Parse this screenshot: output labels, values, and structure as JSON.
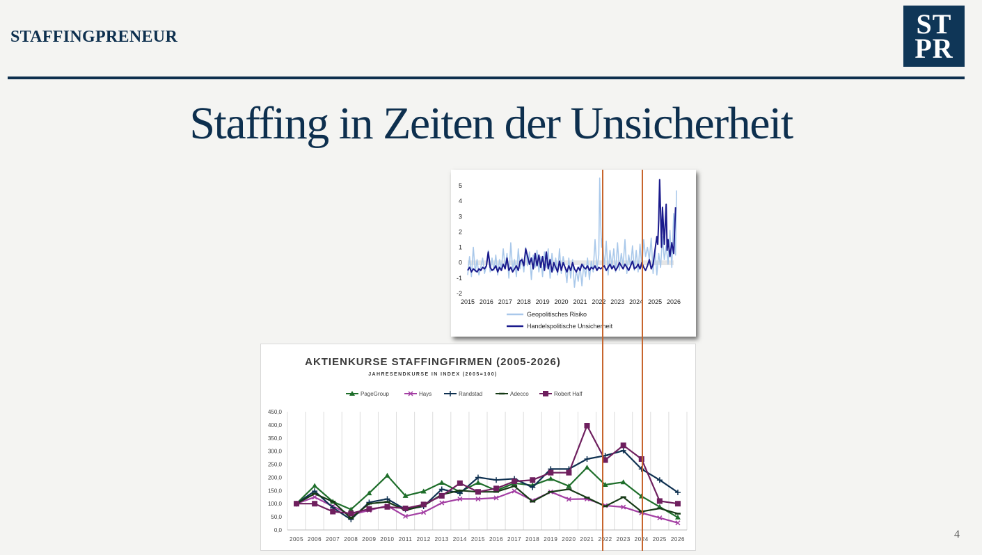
{
  "header": {
    "brand": "STAFFINGPRENEUR",
    "logo_line1": "ST",
    "logo_line2": "PR"
  },
  "title": "Staffing in Zeiten der Unsicherheit",
  "page_number": "4",
  "colors": {
    "navy": "#0d2f4e",
    "marker_line": "#c7652d"
  },
  "chart_data": [
    {
      "type": "line",
      "title": "",
      "x_ticks": [
        "2015",
        "2016",
        "2017",
        "2018",
        "2019",
        "2020",
        "2021",
        "2022",
        "2023",
        "2024",
        "2025",
        "2026"
      ],
      "ylim": [
        -2,
        5.5
      ],
      "y_ticks": [
        "-2",
        "-1",
        "0",
        "1",
        "2",
        "3",
        "4",
        "5"
      ],
      "series": [
        {
          "name": "Geopolitisches Risiko",
          "color": "#a9c8ea",
          "x": [
            2015.0,
            2015.1,
            2015.2,
            2015.3,
            2015.4,
            2015.5,
            2015.6,
            2015.7,
            2015.8,
            2015.9,
            2016.0,
            2016.1,
            2016.2,
            2016.3,
            2016.4,
            2016.5,
            2016.6,
            2016.7,
            2016.8,
            2016.9,
            2017.0,
            2017.1,
            2017.2,
            2017.3,
            2017.4,
            2017.5,
            2017.6,
            2017.7,
            2017.8,
            2017.9,
            2018.0,
            2018.1,
            2018.2,
            2018.3,
            2018.4,
            2018.5,
            2018.6,
            2018.7,
            2018.8,
            2018.9,
            2019.0,
            2019.1,
            2019.2,
            2019.3,
            2019.4,
            2019.5,
            2019.6,
            2019.7,
            2019.8,
            2019.9,
            2020.0,
            2020.1,
            2020.2,
            2020.3,
            2020.4,
            2020.5,
            2020.6,
            2020.7,
            2020.8,
            2020.9,
            2021.0,
            2021.1,
            2021.2,
            2021.3,
            2021.4,
            2021.5,
            2021.6,
            2021.7,
            2021.8,
            2021.9,
            2022.0,
            2022.05,
            2022.1,
            2022.15,
            2022.2,
            2022.3,
            2022.4,
            2022.5,
            2022.6,
            2022.7,
            2022.8,
            2022.9,
            2023.0,
            2023.1,
            2023.2,
            2023.3,
            2023.4,
            2023.5,
            2023.6,
            2023.7,
            2023.8,
            2023.9,
            2024.0,
            2024.1,
            2024.2,
            2024.3,
            2024.4,
            2024.5,
            2024.6,
            2024.7,
            2024.8,
            2024.9,
            2025.0,
            2025.1,
            2025.2,
            2025.3,
            2025.4,
            2025.5,
            2025.6,
            2025.7,
            2025.8,
            2025.9,
            2026.0,
            2026.1,
            2026.15
          ],
          "y": [
            -0.8,
            0.4,
            -0.9,
            1.0,
            -0.6,
            0.2,
            -0.8,
            -0.3,
            0.3,
            -0.7,
            -0.2,
            0.8,
            -0.6,
            0.3,
            -0.5,
            0.5,
            -0.8,
            0.2,
            -0.4,
            0.9,
            -0.3,
            0.6,
            -1.0,
            1.3,
            -0.5,
            0.2,
            -0.9,
            0.9,
            -0.4,
            0.3,
            -0.6,
            1.0,
            -0.2,
            0.7,
            -1.1,
            0.5,
            -0.3,
            0.8,
            -0.6,
            0.4,
            -0.9,
            0.7,
            -0.3,
            0.9,
            -1.0,
            0.6,
            -0.5,
            0.3,
            -0.8,
            0.9,
            -0.7,
            0.4,
            -0.3,
            -1.3,
            0.3,
            -1.0,
            0.2,
            -1.6,
            -0.5,
            -1.2,
            -0.2,
            -1.5,
            -0.1,
            -0.9,
            0.3,
            -1.1,
            0.1,
            -0.6,
            1.5,
            -0.4,
            0.5,
            5.5,
            2.5,
            1.0,
            1.6,
            -0.3,
            1.4,
            -0.8,
            0.8,
            -0.3,
            0.9,
            -0.6,
            1.3,
            -0.5,
            0.6,
            -0.2,
            1.5,
            -0.7,
            0.5,
            -0.3,
            1.1,
            -0.5,
            0.8,
            -0.6,
            1.2,
            -0.3,
            1.5,
            0.4,
            1.0,
            0.2,
            1.6,
            -0.7,
            0.9,
            -0.8,
            0.6,
            -0.3,
            1.7,
            0.2,
            1.1,
            -0.1,
            2.1,
            -0.3,
            3.2,
            0.5,
            4.7
          ]
        },
        {
          "name": "Handelspolitische Unsicherheit",
          "color": "#1a1a8c",
          "x": [
            2015.0,
            2015.1,
            2015.2,
            2015.3,
            2015.4,
            2015.5,
            2015.6,
            2015.7,
            2015.8,
            2015.9,
            2016.0,
            2016.1,
            2016.2,
            2016.3,
            2016.4,
            2016.5,
            2016.6,
            2016.7,
            2016.8,
            2016.9,
            2017.0,
            2017.1,
            2017.2,
            2017.3,
            2017.4,
            2017.5,
            2017.6,
            2017.7,
            2017.8,
            2017.9,
            2018.0,
            2018.1,
            2018.2,
            2018.3,
            2018.4,
            2018.5,
            2018.6,
            2018.7,
            2018.8,
            2018.9,
            2019.0,
            2019.1,
            2019.2,
            2019.3,
            2019.4,
            2019.5,
            2019.6,
            2019.7,
            2019.8,
            2019.9,
            2020.0,
            2020.1,
            2020.2,
            2020.3,
            2020.4,
            2020.5,
            2020.6,
            2020.7,
            2020.8,
            2020.9,
            2021.0,
            2021.1,
            2021.2,
            2021.3,
            2021.4,
            2021.5,
            2021.6,
            2021.7,
            2021.8,
            2021.9,
            2022.0,
            2022.1,
            2022.2,
            2022.3,
            2022.4,
            2022.5,
            2022.6,
            2022.7,
            2022.8,
            2022.9,
            2023.0,
            2023.1,
            2023.2,
            2023.3,
            2023.4,
            2023.5,
            2023.6,
            2023.7,
            2023.8,
            2023.9,
            2024.0,
            2024.1,
            2024.2,
            2024.3,
            2024.4,
            2024.5,
            2024.6,
            2024.7,
            2024.8,
            2024.9,
            2025.0,
            2025.1,
            2025.15,
            2025.2,
            2025.25,
            2025.3,
            2025.35,
            2025.4,
            2025.5,
            2025.6,
            2025.65,
            2025.7,
            2025.8,
            2025.9,
            2026.0,
            2026.1
          ],
          "y": [
            -0.5,
            -0.3,
            -0.6,
            -0.4,
            -0.5,
            -0.6,
            -0.4,
            -0.5,
            -0.3,
            -0.4,
            -0.2,
            0.7,
            -0.3,
            -0.5,
            -0.4,
            -0.2,
            -0.6,
            -0.3,
            -0.5,
            -0.1,
            -0.4,
            0.3,
            -0.5,
            -0.3,
            -0.6,
            -0.4,
            -0.2,
            -0.5,
            0.1,
            0.2,
            -0.2,
            0.9,
            0.4,
            -0.1,
            0.3,
            -0.4,
            0.6,
            -0.2,
            0.5,
            -0.3,
            0.4,
            -0.5,
            0.7,
            -0.4,
            0.2,
            -0.6,
            0.0,
            -0.3,
            -0.6,
            0.1,
            -0.5,
            0.0,
            -0.3,
            -0.6,
            -0.2,
            -0.5,
            0.0,
            -0.4,
            -0.6,
            -0.3,
            -0.5,
            -0.1,
            -0.3,
            -0.4,
            -0.2,
            -0.5,
            -0.3,
            -0.4,
            -0.2,
            -0.5,
            -0.3,
            -0.4,
            -0.3,
            -0.2,
            -0.5,
            -0.3,
            -0.1,
            -0.4,
            -0.2,
            -0.5,
            -0.3,
            0.0,
            -0.2,
            -0.4,
            -0.1,
            -0.3,
            -0.5,
            -0.2,
            0.1,
            -0.4,
            -0.3,
            -0.1,
            -0.4,
            0.0,
            -0.3,
            -0.5,
            -0.2,
            0.2,
            -0.4,
            -0.1,
            0.8,
            1.7,
            1.2,
            2.8,
            5.4,
            3.2,
            1.0,
            3.6,
            1.2,
            3.8,
            0.8,
            1.5,
            0.4,
            1.3,
            0.6,
            3.6
          ]
        }
      ],
      "legend": [
        "Geopolitisches Risiko",
        "Handelspolitische Unsicherheit"
      ],
      "legend_placement": "bottom"
    },
    {
      "type": "line",
      "title": "AKTIENKURSE STAFFINGFIRMEN (2005-2026)",
      "subtitle": "JAHRESENDKURSE IN INDEX (2005=100)",
      "categories": [
        "2005",
        "2006",
        "2007",
        "2008",
        "2009",
        "2010",
        "2011",
        "2012",
        "2013",
        "2014",
        "2015",
        "2016",
        "2017",
        "2018",
        "2019",
        "2020",
        "2021",
        "2022",
        "2023",
        "2024",
        "2025",
        "2026"
      ],
      "ylim": [
        0,
        450
      ],
      "y_ticks": [
        "0,0",
        "50,0",
        "100,0",
        "150,0",
        "200,0",
        "250,0",
        "300,0",
        "350,0",
        "400,0",
        "450,0"
      ],
      "grid": "vertical",
      "legend_placement": "top",
      "series": [
        {
          "name": "PageGroup",
          "color": "#1e6e2a",
          "marker": "triangle",
          "values": [
            100,
            168,
            108,
            78,
            140,
            207,
            130,
            147,
            180,
            145,
            180,
            150,
            178,
            170,
            195,
            167,
            238,
            172,
            182,
            128,
            88,
            48
          ]
        },
        {
          "name": "Hays",
          "color": "#a33fa3",
          "marker": "x",
          "values": [
            100,
            125,
            90,
            57,
            75,
            92,
            52,
            67,
            103,
            118,
            118,
            122,
            148,
            112,
            145,
            117,
            118,
            93,
            87,
            65,
            46,
            27
          ]
        },
        {
          "name": "Randstad",
          "color": "#0e3050",
          "marker": "plus",
          "values": [
            100,
            148,
            85,
            40,
            105,
            118,
            78,
            90,
            155,
            140,
            200,
            190,
            195,
            162,
            232,
            232,
            270,
            283,
            302,
            232,
            190,
            143
          ]
        },
        {
          "name": "Adecco",
          "color": "#163a16",
          "marker": "dash",
          "values": [
            100,
            138,
            108,
            45,
            100,
            107,
            75,
            92,
            135,
            150,
            145,
            145,
            167,
            108,
            145,
            155,
            123,
            90,
            125,
            70,
            82,
            62
          ]
        },
        {
          "name": "Robert Half",
          "color": "#6e1f5e",
          "marker": "square",
          "values": [
            100,
            100,
            70,
            63,
            80,
            88,
            82,
            97,
            130,
            178,
            145,
            158,
            185,
            190,
            218,
            218,
            397,
            266,
            322,
            270,
            110,
            100
          ]
        }
      ]
    }
  ]
}
